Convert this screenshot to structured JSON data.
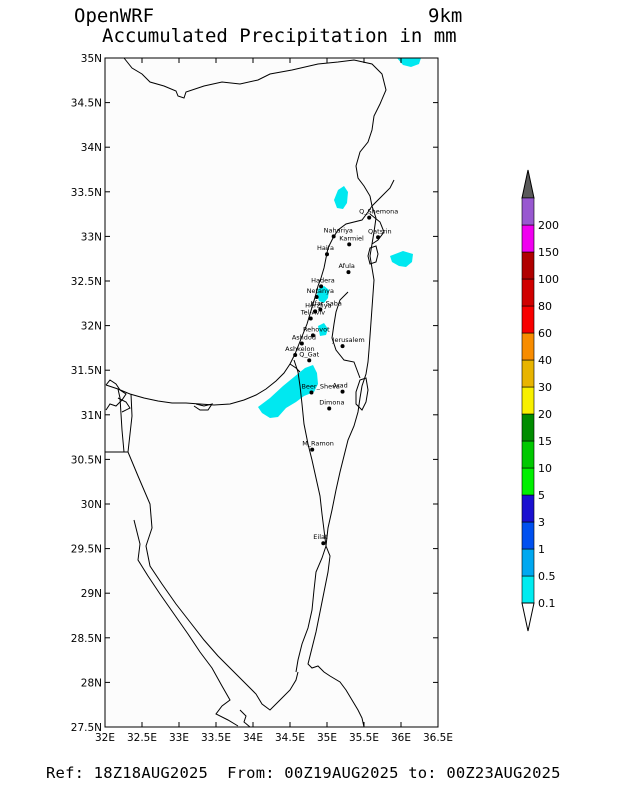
{
  "header": {
    "model": "OpenWRF",
    "resolution": "9km",
    "title": "Accumulated Precipitation in mm"
  },
  "footer": {
    "text": "Ref: 18Z18AUG2025  From: 00Z19AUG2025 to: 00Z23AUG2025"
  },
  "map": {
    "lon_range": [
      32,
      36.5
    ],
    "lat_range": [
      27.5,
      35
    ],
    "lon_ticks": [
      {
        "value": 32,
        "label": "32E"
      },
      {
        "value": 32.5,
        "label": "32.5E"
      },
      {
        "value": 33,
        "label": "33E"
      },
      {
        "value": 33.5,
        "label": "33.5E"
      },
      {
        "value": 34,
        "label": "34E"
      },
      {
        "value": 34.5,
        "label": "34.5E"
      },
      {
        "value": 35,
        "label": "35E"
      },
      {
        "value": 35.5,
        "label": "35.5E"
      },
      {
        "value": 36,
        "label": "36E"
      },
      {
        "value": 36.5,
        "label": "36.5E"
      }
    ],
    "lat_ticks": [
      {
        "value": 35,
        "label": "35N"
      },
      {
        "value": 34.5,
        "label": "34.5N"
      },
      {
        "value": 34,
        "label": "34N"
      },
      {
        "value": 33.5,
        "label": "33.5N"
      },
      {
        "value": 33,
        "label": "33N"
      },
      {
        "value": 32.5,
        "label": "32.5N"
      },
      {
        "value": 32,
        "label": "32N"
      },
      {
        "value": 31.5,
        "label": "31.5N"
      },
      {
        "value": 31,
        "label": "31N"
      },
      {
        "value": 30.5,
        "label": "30.5N"
      },
      {
        "value": 30,
        "label": "30N"
      },
      {
        "value": 29.5,
        "label": "29.5N"
      },
      {
        "value": 29,
        "label": "29N"
      },
      {
        "value": 28.5,
        "label": "28.5N"
      },
      {
        "value": 28,
        "label": "28N"
      },
      {
        "value": 27.5,
        "label": "27.5N"
      }
    ],
    "cities": [
      {
        "name": "Q_Shemona",
        "lon": 35.57,
        "lat": 33.21
      },
      {
        "name": "Nahariya",
        "lon": 35.09,
        "lat": 33.0
      },
      {
        "name": "Karmiel",
        "lon": 35.3,
        "lat": 32.91
      },
      {
        "name": "Qatsrin",
        "lon": 35.69,
        "lat": 32.99
      },
      {
        "name": "Haifa",
        "lon": 35.0,
        "lat": 32.8
      },
      {
        "name": "Afula",
        "lon": 35.29,
        "lat": 32.6
      },
      {
        "name": "Hadera",
        "lon": 34.92,
        "lat": 32.44
      },
      {
        "name": "Netanya",
        "lon": 34.86,
        "lat": 32.32
      },
      {
        "name": "Herzliya",
        "lon": 34.84,
        "lat": 32.16
      },
      {
        "name": "Kfar Saba",
        "lon": 34.91,
        "lat": 32.18
      },
      {
        "name": "Tel-Aviv",
        "lon": 34.78,
        "lat": 32.08
      },
      {
        "name": "Rehovot",
        "lon": 34.81,
        "lat": 31.89
      },
      {
        "name": "Ashdod",
        "lon": 34.66,
        "lat": 31.8
      },
      {
        "name": "Ashkelon",
        "lon": 34.57,
        "lat": 31.67
      },
      {
        "name": "Q_Gat",
        "lon": 34.76,
        "lat": 31.61
      },
      {
        "name": "Jerusalem",
        "lon": 35.21,
        "lat": 31.77
      },
      {
        "name": "Beer_Sheva",
        "lon": 34.79,
        "lat": 31.25
      },
      {
        "name": "Arad",
        "lon": 35.21,
        "lat": 31.26
      },
      {
        "name": "Dimona",
        "lon": 35.03,
        "lat": 31.07
      },
      {
        "name": "M_Ramon",
        "lon": 34.8,
        "lat": 30.61
      },
      {
        "name": "Eilat",
        "lon": 34.95,
        "lat": 29.56
      }
    ],
    "precip_patches_color": "#00e8f0"
  },
  "legend": {
    "levels": [
      {
        "label": "0.1",
        "color": "#00ecf0"
      },
      {
        "label": "0.5",
        "color": "#00a8f0"
      },
      {
        "label": "1",
        "color": "#0050f0"
      },
      {
        "label": "3",
        "color": "#1a10d0"
      },
      {
        "label": "5",
        "color": "#00f000"
      },
      {
        "label": "10",
        "color": "#00c800"
      },
      {
        "label": "15",
        "color": "#008c00"
      },
      {
        "label": "20",
        "color": "#f8f000"
      },
      {
        "label": "30",
        "color": "#e8b400"
      },
      {
        "label": "40",
        "color": "#f88c00"
      },
      {
        "label": "60",
        "color": "#f80000"
      },
      {
        "label": "80",
        "color": "#d00000"
      },
      {
        "label": "100",
        "color": "#b00000"
      },
      {
        "label": "150",
        "color": "#f000f0"
      },
      {
        "label": "200",
        "color": "#9858d0"
      }
    ],
    "over_color": "#5a5a5a",
    "under_color": "#ffffff"
  }
}
